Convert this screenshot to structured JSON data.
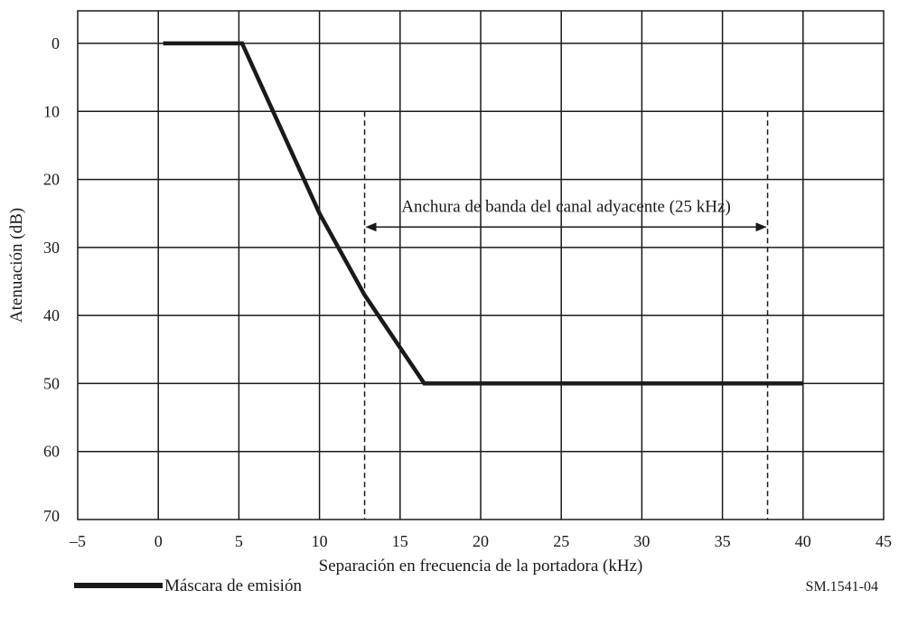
{
  "chart_data": {
    "type": "line",
    "xlabel": "Separación en frecuencia de la portadora (kHz)",
    "ylabel": "Atenuación (dB)",
    "xlim": [
      -5,
      45
    ],
    "ylim": [
      0,
      70
    ],
    "y_inverted": true,
    "grid": true,
    "x_ticks": [
      -5,
      0,
      5,
      10,
      15,
      20,
      25,
      30,
      35,
      40,
      45
    ],
    "x_tick_labels": [
      "–5",
      "0",
      "5",
      "10",
      "15",
      "20",
      "25",
      "30",
      "35",
      "40",
      "45"
    ],
    "y_ticks": [
      0,
      10,
      20,
      30,
      40,
      50,
      60,
      70
    ],
    "y_tick_labels": [
      "0",
      "10",
      "20",
      "30",
      "40",
      "50",
      "60",
      "70"
    ],
    "series": [
      {
        "name": "Máscara de emisión",
        "color": "#1a1a1a",
        "x": [
          0.3,
          5.2,
          10,
          12.8,
          16.5,
          40
        ],
        "y": [
          0,
          0,
          25,
          37,
          50,
          50
        ]
      }
    ],
    "annotations": [
      {
        "type": "dashed-vline",
        "x": 12.8,
        "y_range": [
          10,
          70
        ]
      },
      {
        "type": "dashed-vline",
        "x": 37.8,
        "y_range": [
          10,
          70
        ]
      },
      {
        "type": "double-arrow",
        "x_range": [
          12.8,
          37.8
        ],
        "y": 27,
        "text": "Anchura de banda del canal adyacente (25 kHz)"
      }
    ],
    "legend": {
      "placement": "bottom-left",
      "label": "Máscara de emisión"
    },
    "figure_id": "SM.1541-04"
  }
}
